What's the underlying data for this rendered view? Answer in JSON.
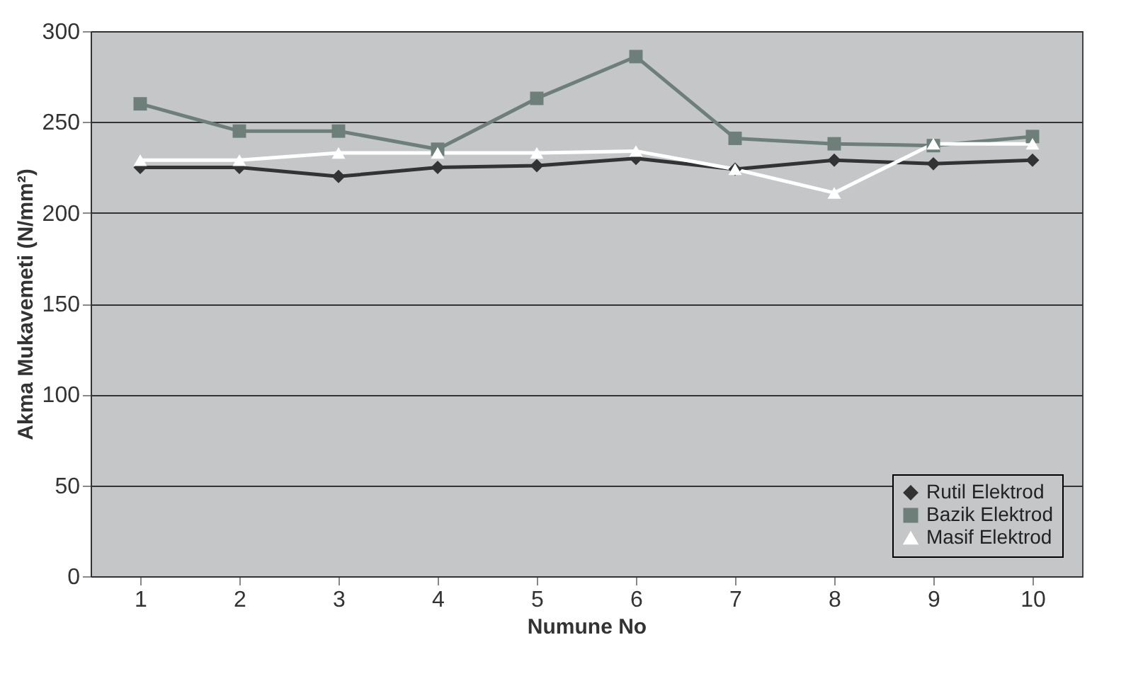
{
  "chart_data": {
    "type": "line",
    "xlabel": "Numune No",
    "ylabel": "Akma Mukavemeti (N/mm²)",
    "categories": [
      "1",
      "2",
      "3",
      "4",
      "5",
      "6",
      "7",
      "8",
      "9",
      "10"
    ],
    "series": [
      {
        "name": "Rutil Elektrod",
        "color": "#333333",
        "marker": "diamond",
        "values": [
          225,
          225,
          220,
          225,
          226,
          230,
          224,
          229,
          227,
          229
        ]
      },
      {
        "name": "Bazik Elektrod",
        "color": "#6e7f7a",
        "marker": "square",
        "values": [
          260,
          245,
          245,
          235,
          263,
          286,
          241,
          238,
          237,
          242
        ]
      },
      {
        "name": "Masif Elektrod",
        "color": "#ffffff",
        "marker": "triangle",
        "values": [
          229,
          229,
          233,
          233,
          233,
          234,
          224,
          211,
          238,
          238
        ]
      }
    ],
    "ylim": [
      0,
      300
    ],
    "yticks": [
      0,
      50,
      100,
      150,
      200,
      250,
      300
    ],
    "grid": "y",
    "legend": "bottom right"
  }
}
